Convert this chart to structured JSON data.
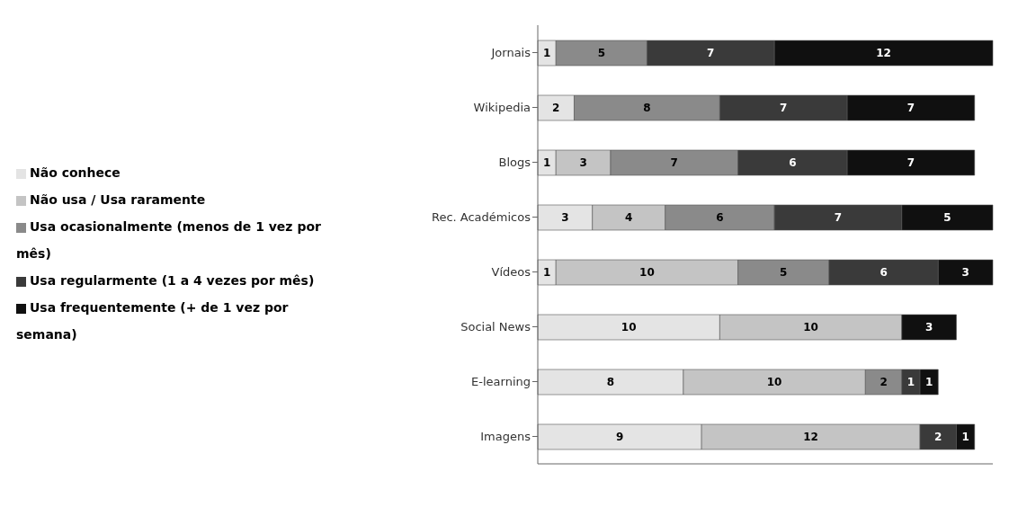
{
  "chart_data": {
    "type": "bar",
    "orientation": "horizontal",
    "stacked": true,
    "data_labels": true,
    "legend": "left",
    "categories": [
      "Jornais",
      "Wikipedia",
      "Blogs",
      "Rec. Académicos",
      "Vídeos",
      "Social News",
      "E-learning",
      "Imagens"
    ],
    "series": [
      {
        "name": "Não conhece",
        "color": "#e4e4e4",
        "values": [
          1,
          2,
          1,
          3,
          1,
          10,
          8,
          9
        ]
      },
      {
        "name": "Não usa / Usa raramente",
        "color": "#c4c4c4",
        "values": [
          null,
          null,
          3,
          4,
          10,
          10,
          10,
          12
        ]
      },
      {
        "name": "Usa ocasionalmente (menos de 1 vez por mês)",
        "color": "#8a8a8a",
        "values": [
          5,
          8,
          7,
          6,
          5,
          null,
          2,
          null
        ]
      },
      {
        "name": "Usa regularmente (1 a 4 vezes por mês)",
        "color": "#3a3a3a",
        "values": [
          7,
          7,
          6,
          7,
          6,
          null,
          1,
          2
        ]
      },
      {
        "name": "Usa frequentemente (+ de 1 vez por semana)",
        "color": "#101010",
        "values": [
          12,
          7,
          7,
          5,
          3,
          3,
          1,
          1
        ]
      }
    ]
  }
}
